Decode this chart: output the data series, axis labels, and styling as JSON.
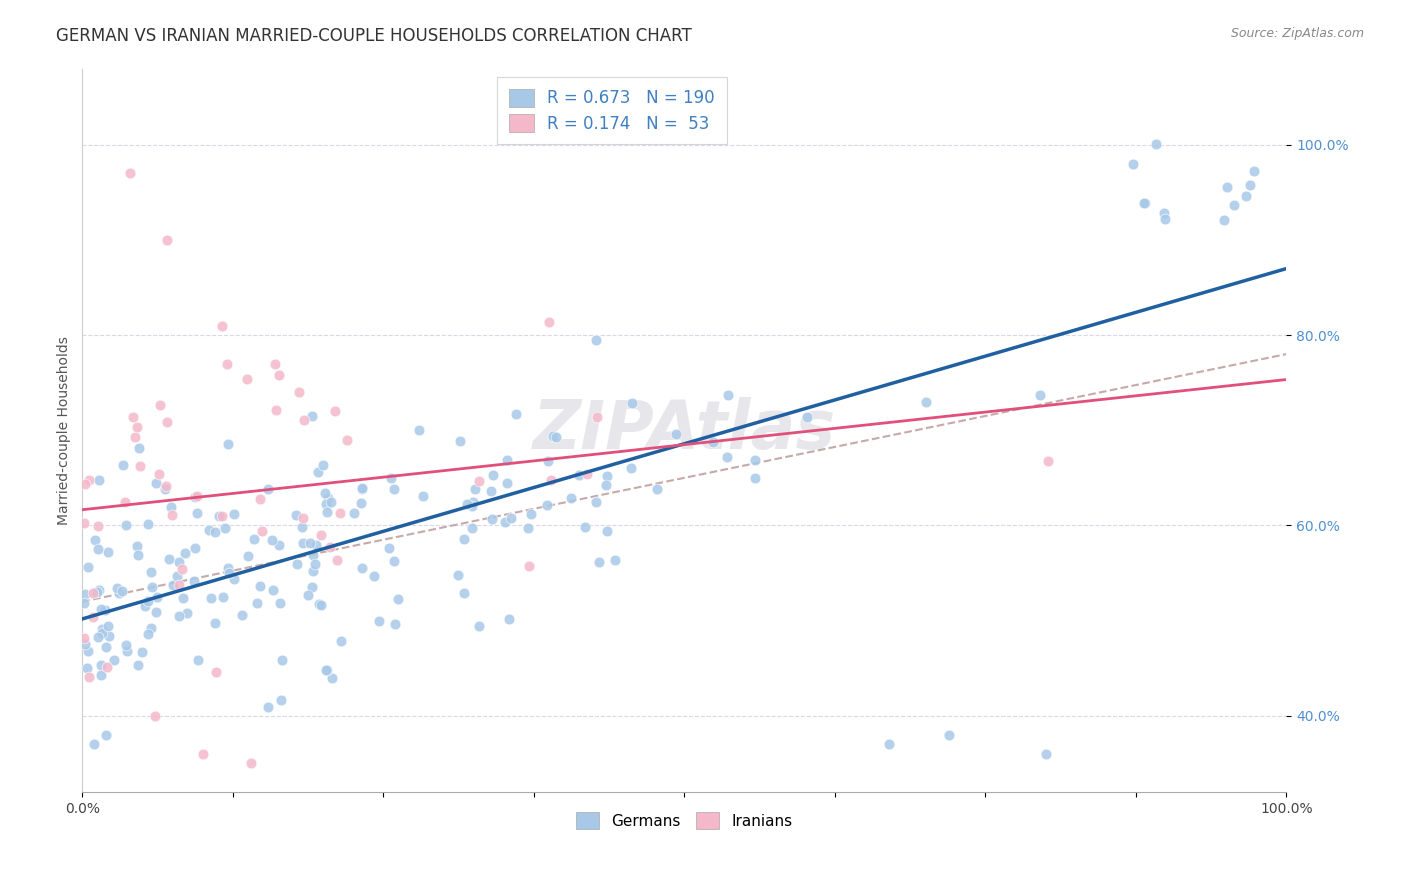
{
  "title": "GERMAN VS IRANIAN MARRIED-COUPLE HOUSEHOLDS CORRELATION CHART",
  "source": "Source: ZipAtlas.com",
  "ylabel": "Married-couple Households",
  "german_R": 0.673,
  "german_N": 190,
  "iranian_R": 0.174,
  "iranian_N": 53,
  "german_color": "#a8c8e8",
  "iranian_color": "#f4b8ca",
  "german_line_color": "#2060a0",
  "iranian_line_color": "#e0507a",
  "trend_dash_color": "#c0a0a0",
  "background_color": "#ffffff",
  "grid_color": "#d8d8e8",
  "legend_label_german": "Germans",
  "legend_label_iranian": "Iranians",
  "watermark": "ZIPAtlas",
  "title_fontsize": 12,
  "axis_label_fontsize": 10,
  "tick_fontsize": 10,
  "legend_fontsize": 11,
  "marker_size": 60,
  "xlim": [
    0.0,
    1.0
  ],
  "ylim": [
    0.32,
    1.08
  ],
  "yticks": [
    0.4,
    0.6,
    0.8,
    1.0
  ],
  "ytick_labels": [
    "40.0%",
    "60.0%",
    "80.0%",
    "100.0%"
  ],
  "xticks": [
    0.0,
    0.125,
    0.25,
    0.375,
    0.5,
    0.625,
    0.75,
    0.875,
    1.0
  ],
  "xtick_labels": [
    "0.0%",
    "",
    "",
    "",
    "",
    "",
    "",
    "",
    "100.0%"
  ]
}
